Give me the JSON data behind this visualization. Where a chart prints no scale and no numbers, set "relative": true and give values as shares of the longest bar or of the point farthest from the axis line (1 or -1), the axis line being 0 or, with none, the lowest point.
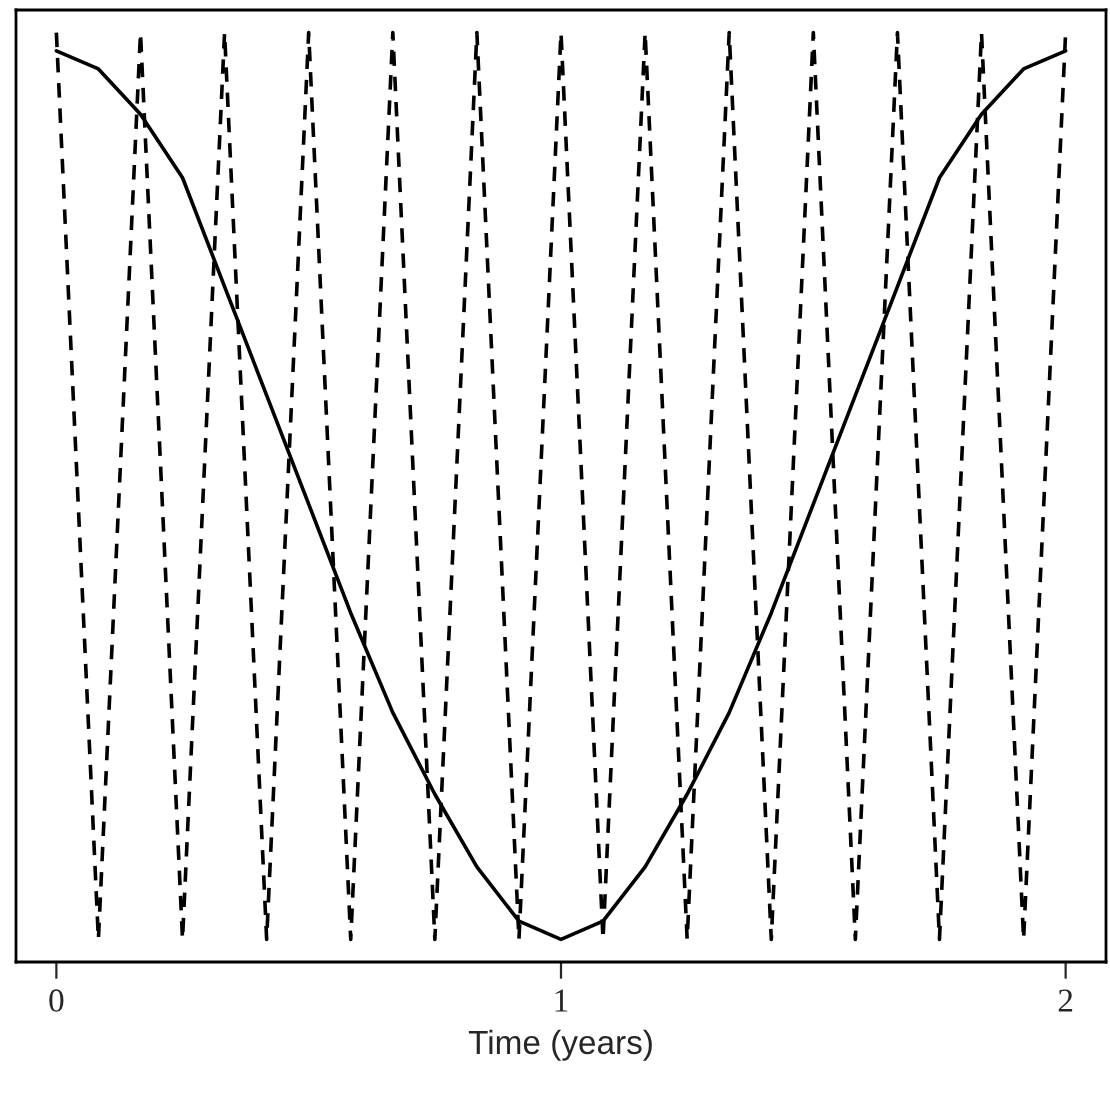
{
  "chart_data": {
    "type": "line",
    "xlabel": "Time (years)",
    "relative": true,
    "x": [
      0,
      0.0833,
      0.1667,
      0.25,
      0.3333,
      0.4167,
      0.5,
      0.5833,
      0.6667,
      0.75,
      0.8333,
      0.9167,
      1,
      1.0833,
      1.1667,
      1.25,
      1.3333,
      1.4167,
      1.5,
      1.5833,
      1.6667,
      1.75,
      1.8333,
      1.9167,
      2
    ],
    "series": [
      {
        "color": "#000000",
        "line_style": "solid",
        "values": [
          0.98,
          0.96,
          0.91,
          0.84,
          0.72,
          0.6,
          0.48,
          0.36,
          0.25,
          0.16,
          0.08,
          0.02,
          0,
          0.02,
          0.08,
          0.16,
          0.25,
          0.36,
          0.48,
          0.6,
          0.72,
          0.84,
          0.91,
          0.96,
          0.98
        ]
      },
      {
        "color": "#000000",
        "line_style": "dashed",
        "values": [
          1,
          0,
          1,
          0,
          1,
          0,
          1,
          0,
          1,
          0,
          1,
          0,
          1,
          0,
          1,
          0,
          1,
          0,
          1,
          0,
          1,
          0,
          1,
          0,
          1
        ]
      }
    ],
    "xlim": [
      -0.08,
      2.08
    ],
    "xticks": [
      0,
      1,
      2
    ],
    "tick_labels": "x",
    "grid": false,
    "legend": false,
    "marker": "none"
  }
}
